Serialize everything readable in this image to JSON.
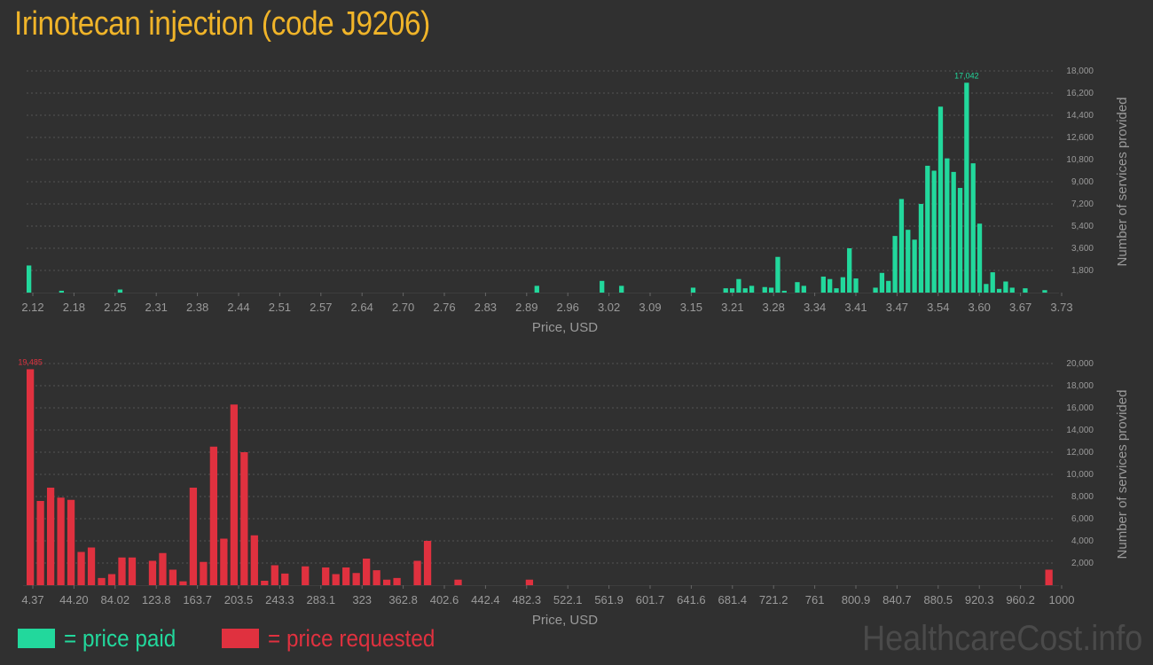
{
  "page": {
    "title": "Irinotecan injection (code J9206)",
    "legend_paid": "= price paid",
    "legend_requested": "= price requested",
    "watermark": "HealthcareCost.info"
  },
  "colors": {
    "paid": "#22d89c",
    "requested": "#e0313f",
    "axis_text": "#9a9a9a",
    "grid": "#555555"
  },
  "chart_data": [
    {
      "type": "bar",
      "xlabel": "Price, USD",
      "ylabel": "Number of services provided",
      "ylim": [
        0,
        18000
      ],
      "y_ticks": [
        1800,
        3600,
        5400,
        7200,
        9000,
        10800,
        12600,
        14400,
        16200,
        18000
      ],
      "y_tick_labels": [
        "1,800",
        "3,600",
        "5,400",
        "7,200",
        "9,000",
        "10,800",
        "12,600",
        "14,400",
        "16,200",
        "18,000"
      ],
      "x_tick_labels": [
        "2.12",
        "2.18",
        "2.25",
        "2.31",
        "2.38",
        "2.44",
        "2.51",
        "2.57",
        "2.64",
        "2.70",
        "2.76",
        "2.83",
        "2.89",
        "2.96",
        "3.02",
        "3.09",
        "3.15",
        "3.21",
        "3.28",
        "3.34",
        "3.41",
        "3.47",
        "3.54",
        "3.60",
        "3.67",
        "3.73"
      ],
      "max_label": "17,042",
      "values": [
        2200,
        0,
        0,
        0,
        0,
        150,
        0,
        0,
        0,
        0,
        0,
        0,
        0,
        0,
        250,
        0,
        0,
        0,
        0,
        0,
        0,
        0,
        0,
        0,
        0,
        0,
        0,
        0,
        0,
        0,
        0,
        0,
        0,
        0,
        0,
        0,
        0,
        0,
        0,
        0,
        0,
        0,
        0,
        0,
        0,
        0,
        0,
        0,
        0,
        0,
        0,
        0,
        0,
        0,
        0,
        0,
        0,
        0,
        0,
        0,
        0,
        0,
        0,
        0,
        0,
        0,
        0,
        0,
        0,
        0,
        0,
        0,
        0,
        0,
        0,
        0,
        0,
        0,
        550,
        0,
        0,
        0,
        0,
        0,
        0,
        0,
        0,
        0,
        950,
        0,
        0,
        550,
        0,
        0,
        0,
        0,
        0,
        0,
        0,
        0,
        0,
        0,
        400,
        0,
        0,
        0,
        0,
        350,
        350,
        1100,
        350,
        550,
        0,
        450,
        400,
        2900,
        150,
        0,
        850,
        550,
        0,
        0,
        1300,
        1100,
        350,
        1250,
        3600,
        1150,
        0,
        0,
        400,
        1600,
        950,
        4600,
        7600,
        5100,
        4300,
        7200,
        10300,
        9900,
        15100,
        10900,
        9800,
        8500,
        17042,
        10500,
        5600,
        700,
        1650,
        300,
        900,
        400,
        0,
        350,
        0,
        0,
        200,
        0
      ]
    },
    {
      "type": "bar",
      "xlabel": "Price, USD",
      "ylabel": "Number of services provided",
      "ylim": [
        0,
        20000
      ],
      "y_ticks": [
        2000,
        4000,
        6000,
        8000,
        10000,
        12000,
        14000,
        16000,
        18000,
        20000
      ],
      "y_tick_labels": [
        "2,000",
        "4,000",
        "6,000",
        "8,000",
        "10,000",
        "12,000",
        "14,000",
        "16,000",
        "18,000",
        "20,000"
      ],
      "x_tick_labels": [
        "4.37",
        "44.20",
        "84.02",
        "123.8",
        "163.7",
        "203.5",
        "243.3",
        "283.1",
        "323",
        "362.8",
        "402.6",
        "442.4",
        "482.3",
        "522.1",
        "561.9",
        "601.7",
        "641.6",
        "681.4",
        "721.2",
        "761",
        "800.9",
        "840.7",
        "880.5",
        "920.3",
        "960.2",
        "1000"
      ],
      "max_label": "19,485",
      "values": [
        19485,
        7600,
        8800,
        7900,
        7700,
        3000,
        3400,
        650,
        1000,
        2500,
        2500,
        0,
        2200,
        2900,
        1400,
        350,
        8800,
        2100,
        12500,
        4200,
        16300,
        12000,
        4500,
        400,
        1800,
        1050,
        0,
        1700,
        0,
        1600,
        1000,
        1600,
        1100,
        2400,
        1350,
        500,
        650,
        0,
        2200,
        4000,
        0,
        0,
        500,
        0,
        0,
        0,
        0,
        0,
        0,
        500,
        0,
        0,
        0,
        0,
        0,
        0,
        0,
        0,
        0,
        0,
        0,
        0,
        0,
        0,
        0,
        0,
        0,
        0,
        0,
        0,
        0,
        0,
        0,
        0,
        0,
        0,
        0,
        0,
        0,
        0,
        0,
        0,
        0,
        0,
        0,
        0,
        0,
        0,
        0,
        0,
        0,
        0,
        0,
        0,
        0,
        0,
        0,
        0,
        0,
        0,
        1400
      ]
    }
  ]
}
